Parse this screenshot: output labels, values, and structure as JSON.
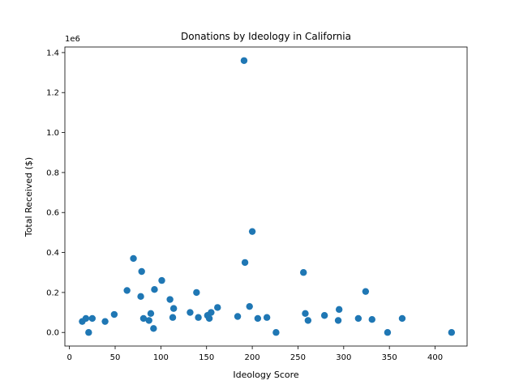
{
  "chart_data": {
    "type": "scatter",
    "title": "Donations by Ideology in California",
    "xlabel": "Ideology Score",
    "ylabel": "Total Received ($)",
    "y_offset_label": "1e6",
    "xlim": [
      -5,
      435
    ],
    "ylim": [
      -68000,
      1428000
    ],
    "x_ticks": [
      0,
      50,
      100,
      150,
      200,
      250,
      300,
      350,
      400
    ],
    "x_tick_labels": [
      "0",
      "50",
      "100",
      "150",
      "200",
      "250",
      "300",
      "350",
      "400"
    ],
    "y_ticks": [
      0,
      200000,
      400000,
      600000,
      800000,
      1000000,
      1200000,
      1400000
    ],
    "y_tick_labels": [
      "0.0",
      "0.2",
      "0.4",
      "0.6",
      "0.8",
      "1.0",
      "1.2",
      "1.4"
    ],
    "grid": false,
    "marker_color": "#1f77b4",
    "points": [
      {
        "x": 14,
        "y": 55000
      },
      {
        "x": 18,
        "y": 70000
      },
      {
        "x": 21,
        "y": 0
      },
      {
        "x": 25,
        "y": 70000
      },
      {
        "x": 39,
        "y": 55000
      },
      {
        "x": 49,
        "y": 90000
      },
      {
        "x": 63,
        "y": 210000
      },
      {
        "x": 70,
        "y": 370000
      },
      {
        "x": 78,
        "y": 180000
      },
      {
        "x": 79,
        "y": 305000
      },
      {
        "x": 81,
        "y": 70000
      },
      {
        "x": 87,
        "y": 60000
      },
      {
        "x": 89,
        "y": 95000
      },
      {
        "x": 92,
        "y": 20000
      },
      {
        "x": 93,
        "y": 215000
      },
      {
        "x": 101,
        "y": 260000
      },
      {
        "x": 110,
        "y": 165000
      },
      {
        "x": 113,
        "y": 75000
      },
      {
        "x": 114,
        "y": 120000
      },
      {
        "x": 132,
        "y": 100000
      },
      {
        "x": 139,
        "y": 200000
      },
      {
        "x": 141,
        "y": 75000
      },
      {
        "x": 151,
        "y": 85000
      },
      {
        "x": 153,
        "y": 70000
      },
      {
        "x": 155,
        "y": 100000
      },
      {
        "x": 162,
        "y": 125000
      },
      {
        "x": 184,
        "y": 80000
      },
      {
        "x": 191,
        "y": 1360000
      },
      {
        "x": 192,
        "y": 350000
      },
      {
        "x": 197,
        "y": 130000
      },
      {
        "x": 200,
        "y": 505000
      },
      {
        "x": 206,
        "y": 70000
      },
      {
        "x": 216,
        "y": 75000
      },
      {
        "x": 226,
        "y": 0
      },
      {
        "x": 256,
        "y": 300000
      },
      {
        "x": 258,
        "y": 95000
      },
      {
        "x": 261,
        "y": 60000
      },
      {
        "x": 279,
        "y": 85000
      },
      {
        "x": 294,
        "y": 60000
      },
      {
        "x": 295,
        "y": 115000
      },
      {
        "x": 316,
        "y": 70000
      },
      {
        "x": 324,
        "y": 205000
      },
      {
        "x": 331,
        "y": 65000
      },
      {
        "x": 348,
        "y": 0
      },
      {
        "x": 364,
        "y": 70000
      },
      {
        "x": 418,
        "y": 0
      }
    ]
  }
}
